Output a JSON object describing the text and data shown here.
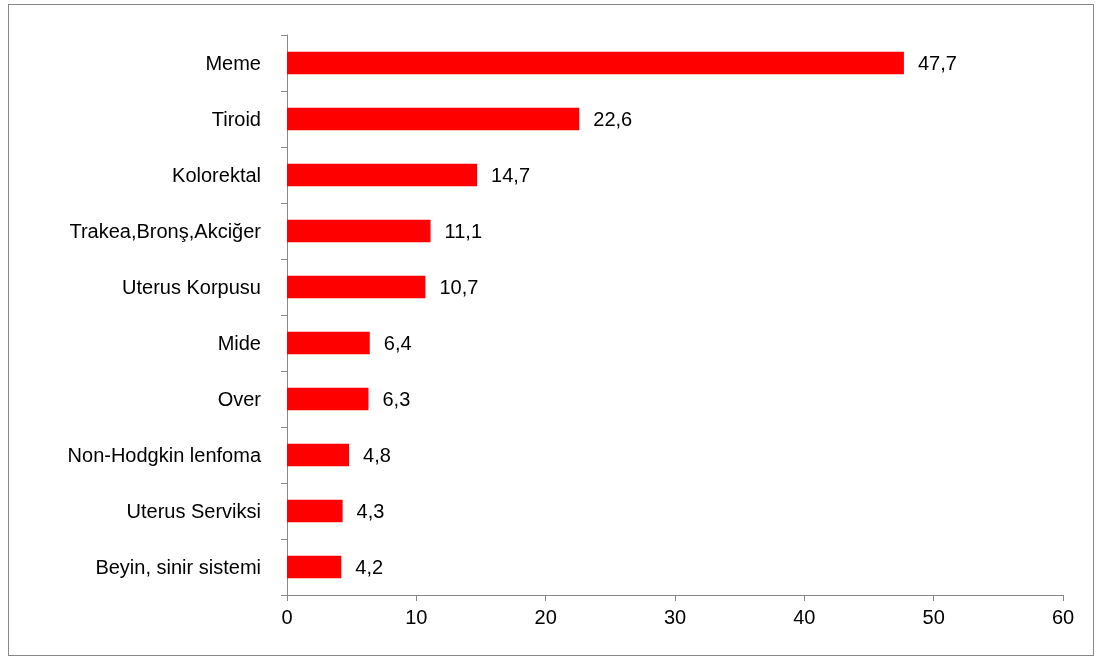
{
  "chart_data": {
    "type": "bar",
    "orientation": "horizontal",
    "categories": [
      "Meme",
      "Tiroid",
      "Kolorektal",
      "Trakea,Bronş,Akciğer",
      "Uterus Korpusu",
      "Mide",
      "Over",
      "Non-Hodgkin lenfoma",
      "Uterus Serviksi",
      "Beyin, sinir sistemi"
    ],
    "values": [
      47.7,
      22.6,
      14.7,
      11.1,
      10.7,
      6.4,
      6.3,
      4.8,
      4.3,
      4.2
    ],
    "value_labels": [
      "47,7",
      "22,6",
      "14,7",
      "11,1",
      "10,7",
      "6,4",
      "6,3",
      "4,8",
      "4,3",
      "4,2"
    ],
    "color": "#ff0000",
    "xlim": [
      0,
      60
    ],
    "xticks": [
      0,
      10,
      20,
      30,
      40,
      50,
      60
    ],
    "grid": false
  }
}
